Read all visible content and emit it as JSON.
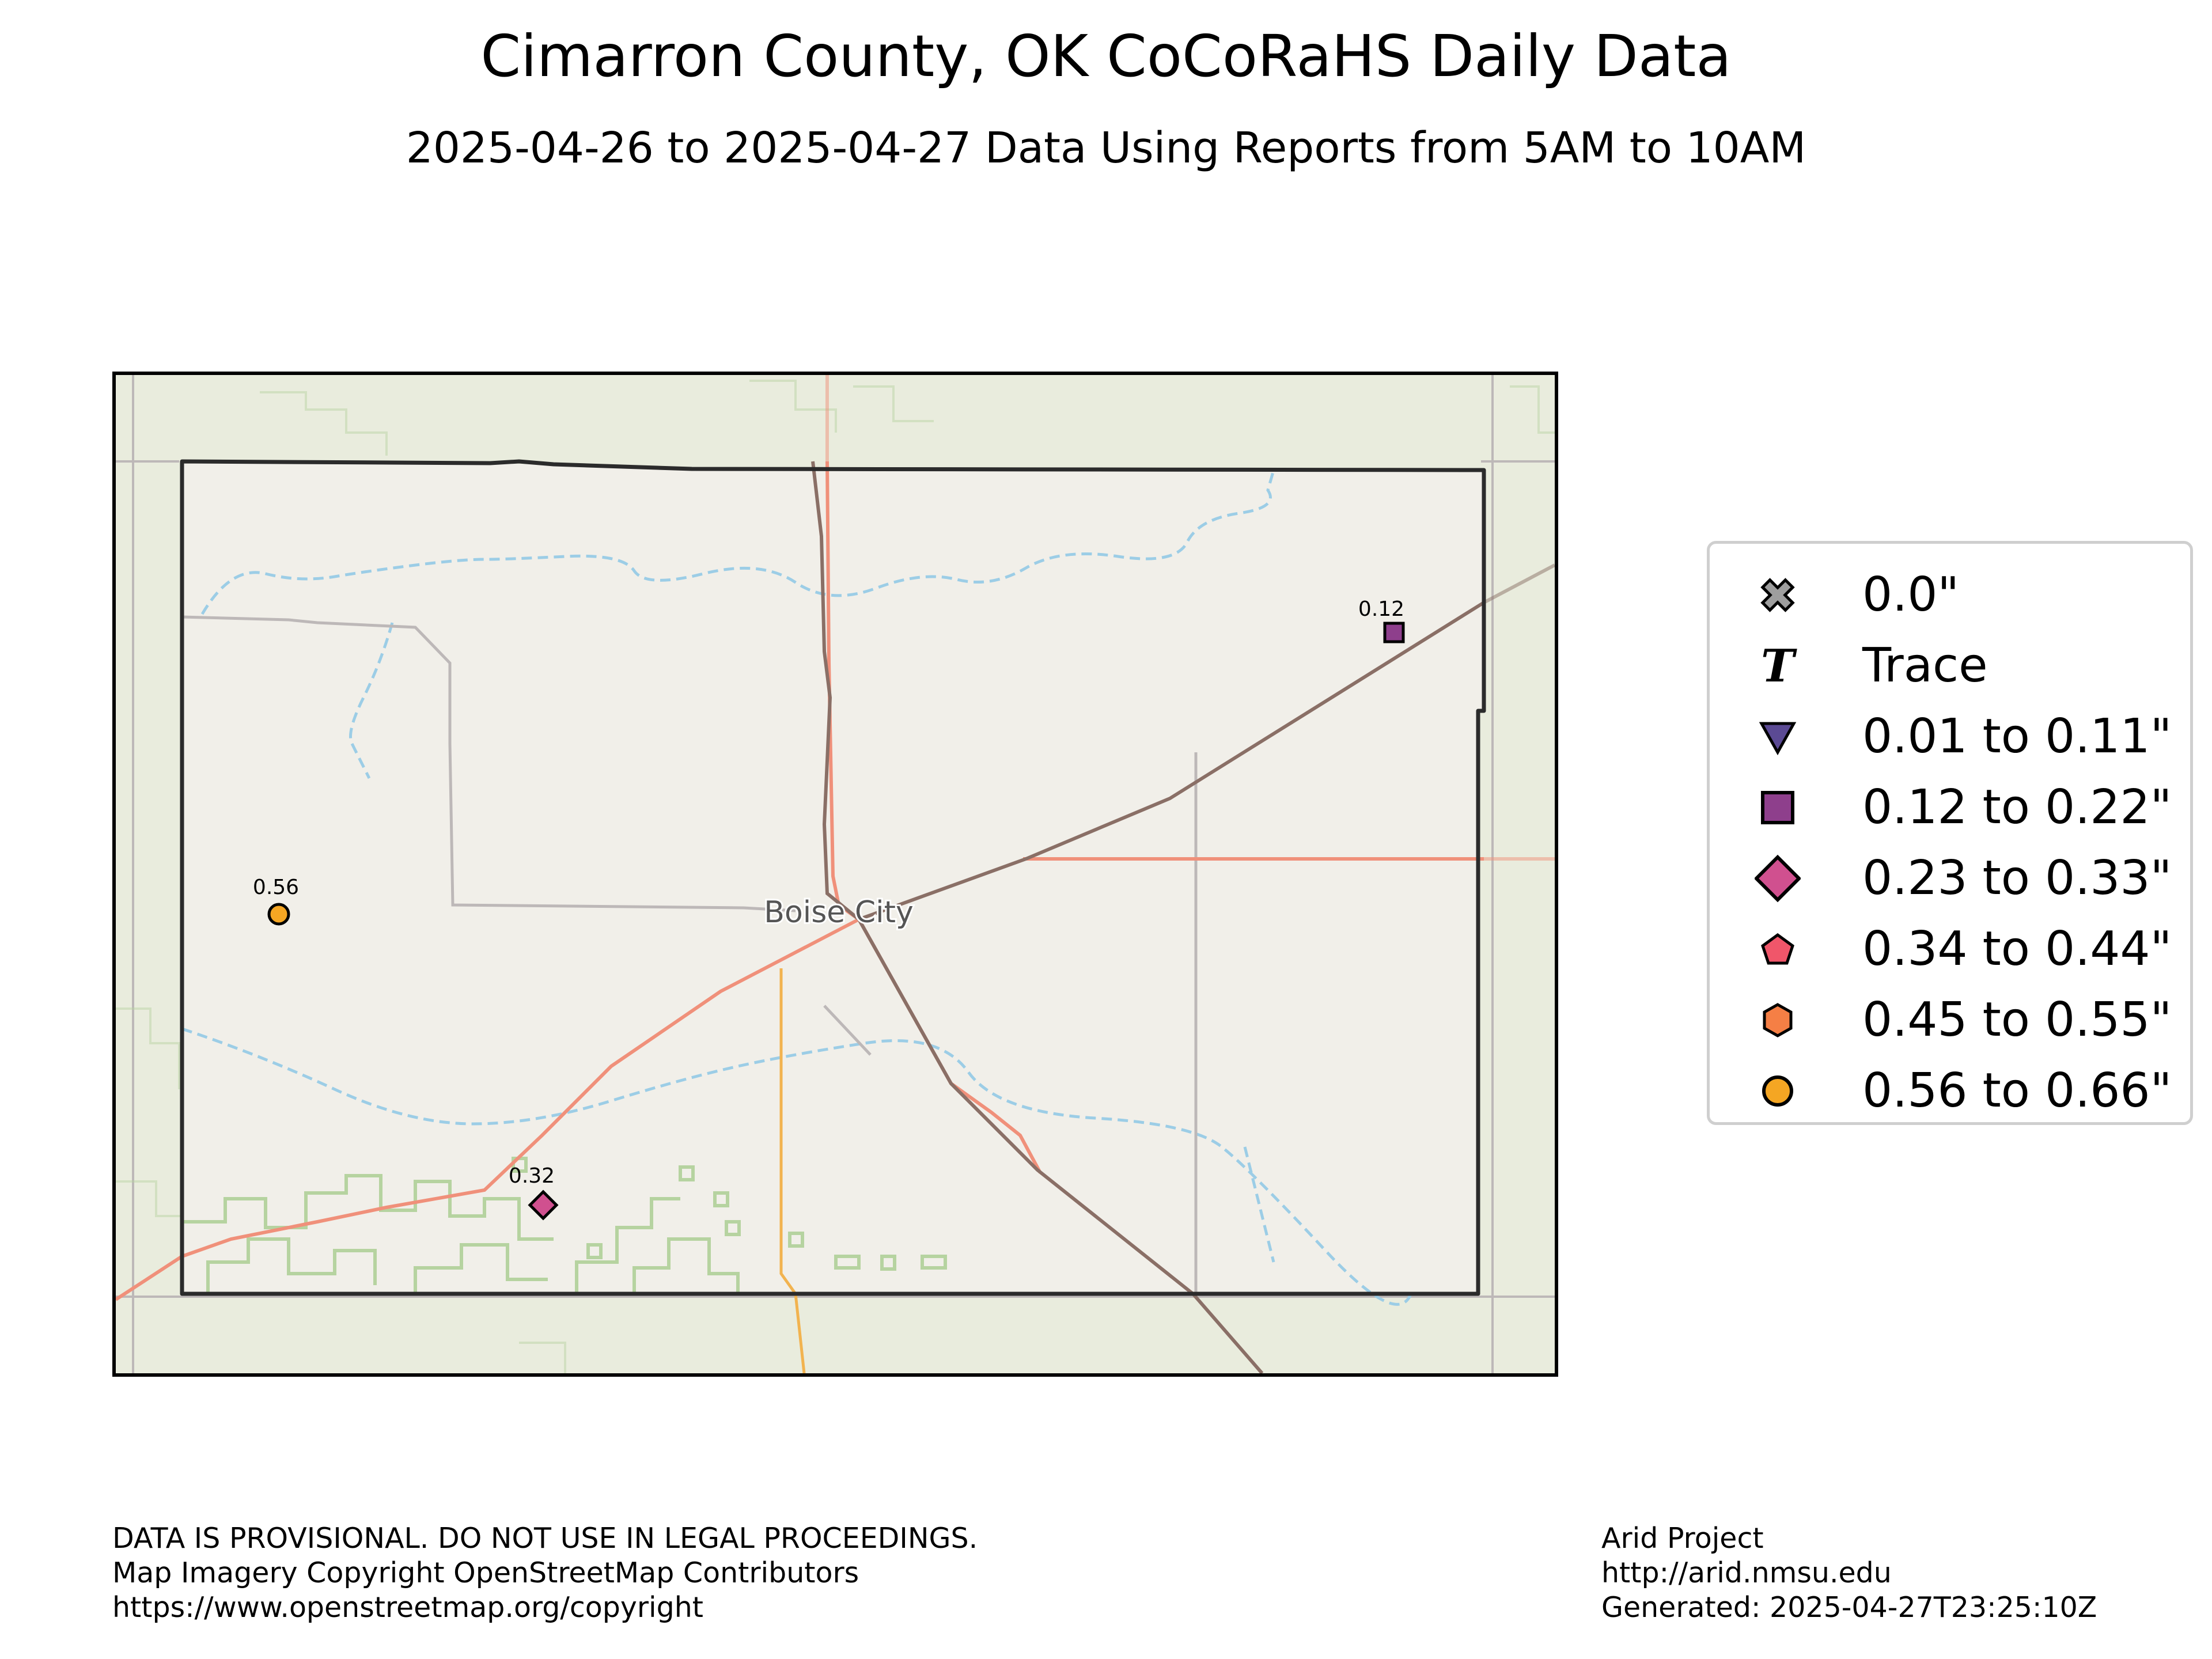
{
  "header": {
    "title": "Cimarron County, OK CoCoRaHS Daily Data",
    "subtitle": "2025-04-26 to 2025-04-27 Data Using Reports from 5AM to 10AM"
  },
  "map": {
    "place_label": "Boise City",
    "stations": [
      {
        "value": "0.12",
        "category": "0.12 to 0.22\"",
        "marker": "square",
        "color": "#8e3f8c"
      },
      {
        "value": "0.56",
        "category": "0.56 to 0.66\"",
        "marker": "circle",
        "color": "#f5a623"
      },
      {
        "value": "0.32",
        "category": "0.23 to 0.33\"",
        "marker": "diamond",
        "color": "#d0508f"
      }
    ],
    "colors": {
      "basemap": "#e9ecdd",
      "county_fill": "#f1efe9",
      "county_border": "#2b2b2b",
      "highway": "#f0907a",
      "state_road": "#f2b34f",
      "railway": "#8a6f66",
      "local_road": "#bdb8b8",
      "stream": "#9ccde6",
      "parkland": "#b6d3a0"
    }
  },
  "legend": {
    "items": [
      {
        "label": "0.0\"",
        "symbol": "x-cross",
        "color": "#9e9e9e"
      },
      {
        "label": "Trace",
        "symbol": "letter-T",
        "color": "#000000"
      },
      {
        "label": "0.01 to 0.11\"",
        "symbol": "triangle-down",
        "color": "#5b4a94"
      },
      {
        "label": "0.12 to 0.22\"",
        "symbol": "square",
        "color": "#8e3f8c"
      },
      {
        "label": "0.23 to 0.33\"",
        "symbol": "diamond",
        "color": "#d0508f"
      },
      {
        "label": "0.34 to 0.44\"",
        "symbol": "pentagon",
        "color": "#f0566a"
      },
      {
        "label": "0.45 to 0.55\"",
        "symbol": "hexagon",
        "color": "#f57f45"
      },
      {
        "label": "0.56 to 0.66\"",
        "symbol": "circle",
        "color": "#f5a623"
      }
    ]
  },
  "footer": {
    "left": [
      "DATA IS PROVISIONAL. DO NOT USE IN LEGAL PROCEEDINGS.",
      "Map Imagery Copyright OpenStreetMap Contributors",
      "https://www.openstreetmap.org/copyright"
    ],
    "right": [
      "Arid Project",
      "http://arid.nmsu.edu",
      "Generated: 2025-04-27T23:25:10Z"
    ]
  }
}
